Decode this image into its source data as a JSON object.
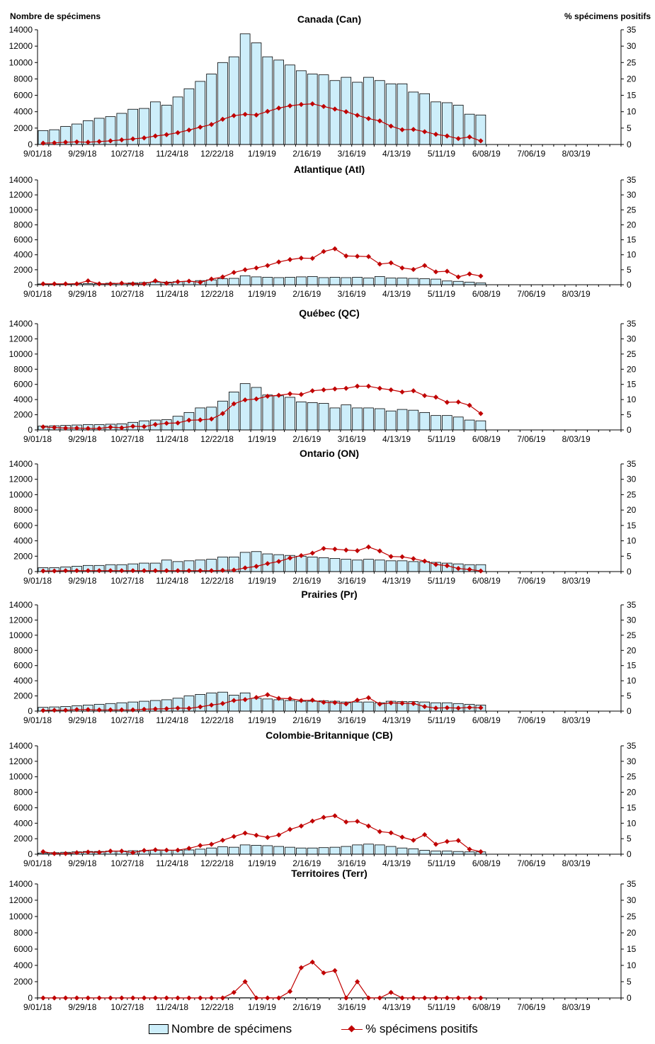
{
  "axis_left_title": "Nombre de spécimens",
  "axis_right_title": "% spécimens positifs",
  "legend": {
    "bars": "Nombre de spécimens",
    "line": "% spécimens positifs"
  },
  "colors": {
    "bar_fill": "#cdeefa",
    "bar_stroke": "#000000",
    "line": "#c00000"
  },
  "chart_data": [
    {
      "type": "bar",
      "title": "Canada (Can)",
      "x_tick_labels": [
        "9/01/18",
        "9/29/18",
        "10/27/18",
        "11/24/18",
        "12/22/18",
        "1/19/19",
        "2/16/19",
        "3/16/19",
        "4/13/19",
        "5/11/19",
        "6/08/19",
        "7/06/19",
        "8/03/19"
      ],
      "y_left_ticks": [
        0,
        2000,
        4000,
        6000,
        8000,
        10000,
        12000,
        14000
      ],
      "y_right_ticks": [
        0,
        5,
        10,
        15,
        20,
        25,
        30,
        35
      ],
      "ylim_left": [
        0,
        14000
      ],
      "ylim_right": [
        0,
        35
      ],
      "series": [
        {
          "values": [
            1700,
            1800,
            2200,
            2500,
            2900,
            3200,
            3400,
            3800,
            4300,
            4400,
            5200,
            4800,
            5800,
            6800,
            7700,
            8600,
            10000,
            10700,
            13500,
            12400,
            10700,
            10300,
            9700,
            9000,
            8600,
            8500,
            7800,
            8200,
            7600,
            8200,
            7800,
            7400,
            7400,
            6400,
            6200,
            5200,
            5100,
            4800,
            3700,
            3600
          ]
        },
        {
          "values": [
            0.4,
            0.5,
            0.7,
            0.8,
            0.7,
            0.9,
            1.1,
            1.4,
            1.7,
            2.0,
            2.6,
            3.0,
            3.6,
            4.4,
            5.3,
            6.1,
            7.7,
            8.8,
            9.2,
            9.0,
            10.1,
            11.1,
            11.8,
            12.2,
            12.4,
            11.6,
            10.8,
            10.0,
            8.9,
            7.9,
            7.2,
            5.6,
            4.5,
            4.6,
            3.9,
            3.1,
            2.6,
            1.8,
            2.3,
            1.1
          ]
        }
      ]
    },
    {
      "type": "bar",
      "title": "Atlantique (Atl)",
      "x_tick_labels": [
        "9/01/18",
        "9/29/18",
        "10/27/18",
        "11/24/18",
        "12/22/18",
        "1/19/19",
        "2/16/19",
        "3/16/19",
        "4/13/19",
        "5/11/19",
        "6/08/19",
        "7/06/19",
        "8/03/19"
      ],
      "y_left_ticks": [
        0,
        2000,
        4000,
        6000,
        8000,
        10000,
        12000,
        14000
      ],
      "y_right_ticks": [
        0,
        5,
        10,
        15,
        20,
        25,
        30,
        35
      ],
      "ylim_left": [
        0,
        14000
      ],
      "ylim_right": [
        0,
        35
      ],
      "series": [
        {
          "values": [
            100,
            100,
            100,
            150,
            150,
            150,
            200,
            200,
            250,
            300,
            350,
            350,
            400,
            450,
            550,
            650,
            800,
            850,
            1200,
            1050,
            1000,
            950,
            1000,
            1050,
            1100,
            950,
            1000,
            950,
            1000,
            900,
            1100,
            900,
            900,
            850,
            800,
            750,
            500,
            450,
            350,
            250
          ]
        },
        {
          "values": [
            0.3,
            0.3,
            0.3,
            0.3,
            1.3,
            0.3,
            0.3,
            0.5,
            0.3,
            0.3,
            1.3,
            0.5,
            1.0,
            1.2,
            0.8,
            1.9,
            2.6,
            4.1,
            5.0,
            5.6,
            6.4,
            7.6,
            8.4,
            8.9,
            8.8,
            11.1,
            12.0,
            9.6,
            9.5,
            9.4,
            6.9,
            7.3,
            5.6,
            5.1,
            6.4,
            4.3,
            4.5,
            2.6,
            3.6,
            2.9
          ]
        }
      ]
    },
    {
      "type": "bar",
      "title": "Québec (QC)",
      "x_tick_labels": [
        "9/01/18",
        "9/29/18",
        "10/27/18",
        "11/24/18",
        "12/22/18",
        "1/19/19",
        "2/16/19",
        "3/16/19",
        "4/13/19",
        "5/11/19",
        "6/08/19",
        "7/06/19",
        "8/03/19"
      ],
      "y_left_ticks": [
        0,
        2000,
        4000,
        6000,
        8000,
        10000,
        12000,
        14000
      ],
      "y_right_ticks": [
        0,
        5,
        10,
        15,
        20,
        25,
        30,
        35
      ],
      "ylim_left": [
        0,
        14000
      ],
      "ylim_right": [
        0,
        35
      ],
      "series": [
        {
          "values": [
            500,
            550,
            600,
            650,
            700,
            700,
            750,
            800,
            1000,
            1200,
            1300,
            1350,
            1800,
            2300,
            2900,
            3000,
            3800,
            5000,
            6100,
            5600,
            4600,
            4500,
            4300,
            3700,
            3600,
            3500,
            2900,
            3300,
            2900,
            2900,
            2800,
            2500,
            2700,
            2600,
            2300,
            1900,
            1900,
            1700,
            1300,
            1200
          ]
        },
        {
          "values": [
            1.0,
            0.8,
            0.6,
            0.6,
            0.5,
            0.5,
            0.9,
            0.7,
            1.2,
            1.1,
            1.8,
            2.2,
            2.3,
            3.2,
            3.3,
            3.6,
            5.4,
            8.6,
            9.9,
            10.2,
            11.1,
            11.4,
            11.9,
            11.7,
            12.9,
            13.2,
            13.5,
            13.7,
            14.4,
            14.4,
            13.7,
            13.2,
            12.5,
            12.9,
            11.3,
            10.8,
            9.1,
            9.2,
            8.1,
            5.4
          ]
        }
      ]
    },
    {
      "type": "bar",
      "title": "Ontario (ON)",
      "x_tick_labels": [
        "9/01/18",
        "9/29/18",
        "10/27/18",
        "11/24/18",
        "12/22/18",
        "1/19/19",
        "2/16/19",
        "3/16/19",
        "4/13/19",
        "5/11/19",
        "6/08/19",
        "7/06/19",
        "8/03/19"
      ],
      "y_left_ticks": [
        0,
        2000,
        4000,
        6000,
        8000,
        10000,
        12000,
        14000
      ],
      "y_right_ticks": [
        0,
        5,
        10,
        15,
        20,
        25,
        30,
        35
      ],
      "ylim_left": [
        0,
        14000
      ],
      "ylim_right": [
        0,
        35
      ],
      "series": [
        {
          "values": [
            500,
            500,
            600,
            700,
            800,
            800,
            900,
            900,
            1000,
            1100,
            1100,
            1500,
            1300,
            1400,
            1500,
            1600,
            1900,
            1900,
            2500,
            2600,
            2300,
            2200,
            2100,
            2000,
            1900,
            1800,
            1700,
            1600,
            1500,
            1600,
            1500,
            1400,
            1400,
            1300,
            1300,
            1200,
            1100,
            1000,
            900,
            900
          ]
        },
        {
          "values": [
            0.2,
            0.2,
            0.3,
            0.3,
            0.3,
            0.3,
            0.3,
            0.3,
            0.3,
            0.3,
            0.3,
            0.3,
            0.3,
            0.3,
            0.3,
            0.3,
            0.4,
            0.5,
            1.2,
            1.7,
            2.6,
            3.3,
            4.4,
            5.2,
            6.0,
            7.5,
            7.3,
            7.0,
            6.8,
            8.0,
            6.7,
            4.9,
            4.8,
            4.2,
            3.4,
            2.3,
            1.9,
            1.0,
            0.7,
            0.2
          ]
        }
      ]
    },
    {
      "type": "bar",
      "title": "Prairies (Pr)",
      "x_tick_labels": [
        "9/01/18",
        "9/29/18",
        "10/27/18",
        "11/24/18",
        "12/22/18",
        "1/19/19",
        "2/16/19",
        "3/16/19",
        "4/13/19",
        "5/11/19",
        "6/08/19",
        "7/06/19",
        "8/03/19"
      ],
      "y_left_ticks": [
        0,
        2000,
        4000,
        6000,
        8000,
        10000,
        12000,
        14000
      ],
      "y_right_ticks": [
        0,
        5,
        10,
        15,
        20,
        25,
        30,
        35
      ],
      "ylim_left": [
        0,
        14000
      ],
      "ylim_right": [
        0,
        35
      ],
      "series": [
        {
          "values": [
            500,
            550,
            600,
            700,
            800,
            900,
            1000,
            1100,
            1200,
            1300,
            1400,
            1500,
            1700,
            2000,
            2200,
            2400,
            2500,
            2100,
            2400,
            1700,
            1600,
            1500,
            1400,
            1300,
            1300,
            1350,
            1300,
            1200,
            1200,
            1200,
            1100,
            1300,
            1250,
            1250,
            1200,
            1100,
            1100,
            1000,
            900,
            800
          ]
        },
        {
          "values": [
            0.2,
            0.3,
            0.3,
            0.5,
            0.5,
            0.4,
            0.4,
            0.4,
            0.4,
            0.6,
            0.7,
            0.8,
            1.0,
            0.9,
            1.4,
            2.0,
            2.5,
            3.5,
            3.8,
            4.5,
            5.4,
            4.2,
            4.1,
            3.5,
            3.6,
            2.9,
            2.8,
            2.4,
            3.6,
            4.4,
            2.3,
            2.7,
            2.6,
            2.5,
            1.5,
            1.0,
            1.1,
            1.0,
            1.2,
            1.1
          ]
        }
      ]
    },
    {
      "type": "bar",
      "title": "Colombie-Britannique (CB)",
      "x_tick_labels": [
        "9/01/18",
        "9/29/18",
        "10/27/18",
        "11/24/18",
        "12/22/18",
        "1/19/19",
        "2/16/19",
        "3/16/19",
        "4/13/19",
        "5/11/19",
        "6/08/19",
        "7/06/19",
        "8/03/19"
      ],
      "y_left_ticks": [
        0,
        2000,
        4000,
        6000,
        8000,
        10000,
        12000,
        14000
      ],
      "y_right_ticks": [
        0,
        5,
        10,
        15,
        20,
        25,
        30,
        35
      ],
      "ylim_left": [
        0,
        14000
      ],
      "ylim_right": [
        0,
        35
      ],
      "series": [
        {
          "values": [
            150,
            200,
            250,
            300,
            350,
            350,
            400,
            400,
            450,
            450,
            500,
            500,
            500,
            550,
            650,
            800,
            950,
            900,
            1200,
            1150,
            1100,
            1000,
            900,
            800,
            800,
            850,
            900,
            1000,
            1200,
            1300,
            1200,
            1000,
            800,
            700,
            500,
            400,
            400,
            350,
            300,
            300
          ]
        },
        {
          "values": [
            0.8,
            0.2,
            0.2,
            0.5,
            0.7,
            0.6,
            1.0,
            1.0,
            0.5,
            1.2,
            1.4,
            1.3,
            1.3,
            1.9,
            2.8,
            3.2,
            4.5,
            5.7,
            6.8,
            6.1,
            5.4,
            6.2,
            8.0,
            9.1,
            10.7,
            11.9,
            12.4,
            10.4,
            10.6,
            9.1,
            7.3,
            6.9,
            5.5,
            4.5,
            6.3,
            3.2,
            4.1,
            4.4,
            1.6,
            0.8
          ]
        }
      ]
    },
    {
      "type": "bar",
      "title": "Territoires (Terr)",
      "x_tick_labels": [
        "9/01/18",
        "9/29/18",
        "10/27/18",
        "11/24/18",
        "12/22/18",
        "1/19/19",
        "2/16/19",
        "3/16/19",
        "4/13/19",
        "5/11/19",
        "6/08/19",
        "7/06/19",
        "8/03/19"
      ],
      "y_left_ticks": [
        0,
        2000,
        4000,
        6000,
        8000,
        10000,
        12000,
        14000
      ],
      "y_right_ticks": [
        0,
        5,
        10,
        15,
        20,
        25,
        30,
        35
      ],
      "ylim_left": [
        0,
        14000
      ],
      "ylim_right": [
        0,
        35
      ],
      "series": [
        {
          "values": [
            20,
            20,
            20,
            20,
            20,
            20,
            20,
            20,
            20,
            20,
            20,
            20,
            20,
            20,
            20,
            20,
            30,
            30,
            30,
            30,
            30,
            30,
            30,
            30,
            30,
            30,
            30,
            30,
            30,
            30,
            30,
            30,
            30,
            30,
            30,
            30,
            30,
            20,
            20,
            20
          ]
        },
        {
          "values": [
            0,
            0,
            0,
            0,
            0,
            0,
            0,
            0,
            0,
            0,
            0,
            0,
            0,
            0,
            0,
            0,
            0,
            1.7,
            5.0,
            0,
            0,
            0,
            2.0,
            9.3,
            11.0,
            7.7,
            8.4,
            0,
            5.0,
            0,
            0,
            1.7,
            0,
            0,
            0,
            0,
            0,
            0,
            0,
            0
          ]
        }
      ]
    }
  ]
}
